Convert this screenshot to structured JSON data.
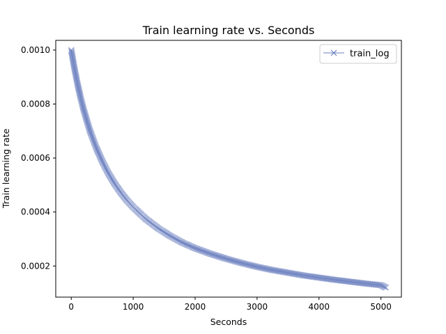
{
  "chart_data": {
    "type": "line",
    "title": "Train learning rate  vs. Seconds",
    "xlabel": "Seconds",
    "ylabel": "Train learning rate",
    "xlim": [
      -250,
      5330
    ],
    "ylim": [
      8.47e-05,
      0.0010359
    ],
    "xticks": [
      0,
      1000,
      2000,
      3000,
      4000,
      5000
    ],
    "xtick_labels": [
      "0",
      "1000",
      "2000",
      "3000",
      "4000",
      "5000"
    ],
    "yticks": [
      0.0002,
      0.0004,
      0.0006,
      0.0008,
      0.001
    ],
    "ytick_labels": [
      "0.0002",
      "0.0004",
      "0.0006",
      "0.0008",
      "0.0010"
    ],
    "grid": false,
    "legend_position": "top-right",
    "series": [
      {
        "name": "train_log",
        "color": "#6b7fbf",
        "marker": "x",
        "x": [
          0,
          50,
          100,
          150,
          200,
          300,
          400,
          500,
          600,
          700,
          800,
          900,
          1000,
          1200,
          1400,
          1600,
          1800,
          2000,
          2250,
          2500,
          2750,
          3000,
          3250,
          3500,
          3750,
          4000,
          4250,
          4500,
          4750,
          5000,
          5080
        ],
        "y": [
          0.001,
          0.000934,
          0.000876,
          0.000825,
          0.000779,
          0.000702,
          0.00064,
          0.000588,
          0.000543,
          0.000505,
          0.000472,
          0.000443,
          0.000418,
          0.000375,
          0.00034,
          0.000311,
          0.000286,
          0.000266,
          0.000245,
          0.000227,
          0.000211,
          0.000197,
          0.000185,
          0.000175,
          0.000165,
          0.000157,
          0.000149,
          0.000142,
          0.000135,
          0.000129,
          0.00012
        ]
      }
    ]
  }
}
